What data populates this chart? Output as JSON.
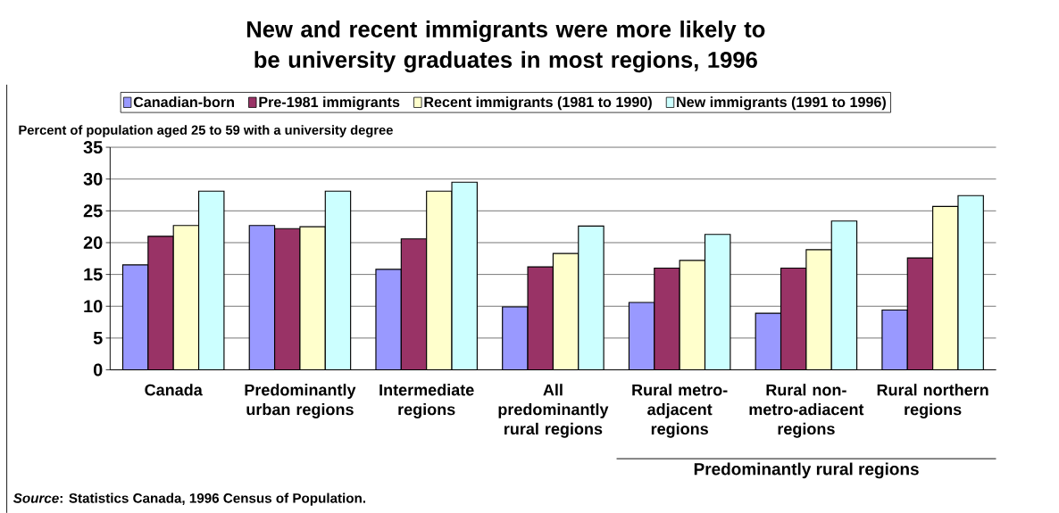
{
  "chart_data": {
    "type": "bar",
    "title": "New and recent immigrants were more likely to be university graduates in most regions, 1996",
    "ylabel": "Percent of population aged 25 to 59 with a university degree",
    "categories": [
      "Canada",
      "Predominantly urban regions",
      "Intermediate regions",
      "All predominantly rural regions",
      "Rural metro-adjacent regions",
      "Rural non-metro-adiacent regions",
      "Rural northern regions"
    ],
    "series": [
      {
        "name": "Canadian-born",
        "color": "#9999ff",
        "values": [
          16.5,
          22.7,
          15.8,
          9.9,
          10.6,
          8.9,
          9.4
        ]
      },
      {
        "name": "Pre-1981 immigrants",
        "color": "#993366",
        "values": [
          21.0,
          22.2,
          20.6,
          16.2,
          16.0,
          16.0,
          17.6
        ]
      },
      {
        "name": "Recent immigrants (1981 to 1990)",
        "color": "#ffffcc",
        "values": [
          22.7,
          22.5,
          28.1,
          18.3,
          17.2,
          18.9,
          25.7
        ]
      },
      {
        "name": "New immigrants (1991 to 1996)",
        "color": "#ccffff",
        "values": [
          28.1,
          28.1,
          29.5,
          22.6,
          21.3,
          23.4,
          27.4
        ]
      }
    ],
    "ylim": [
      0,
      35
    ],
    "yticks": [
      0,
      5,
      10,
      15,
      20,
      25,
      30,
      35
    ],
    "grid": "y",
    "legend": "top",
    "annotations": [
      "Predominantly rural regions",
      "*Source*: Statistics Canada, 1996 Census of Population."
    ]
  }
}
